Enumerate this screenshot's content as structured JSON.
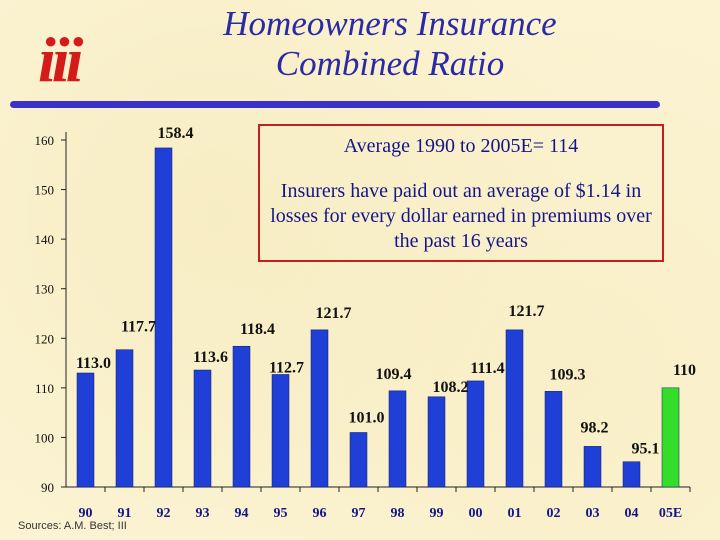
{
  "logo_text": "iii",
  "title_line1": "Homeowners Insurance",
  "title_line2": "Combined Ratio",
  "annotation": {
    "average": "Average 1990 to 2005E= 114",
    "description": "Insurers have paid out an average of $1.14 in losses for every dollar earned in premiums over the past 16 years"
  },
  "source": "Sources: A.M. Best; III",
  "colors": {
    "bar": "#1f3fd6",
    "bar_estimate": "#33dd2a",
    "title": "#2a2aa8",
    "logo": "#d51a1a",
    "box_border": "#c02020"
  },
  "chart_data": {
    "type": "bar",
    "categories": [
      "90",
      "91",
      "92",
      "93",
      "94",
      "95",
      "96",
      "97",
      "98",
      "99",
      "00",
      "01",
      "02",
      "03",
      "04",
      "05E"
    ],
    "values": [
      113.0,
      117.7,
      158.4,
      113.6,
      118.4,
      112.7,
      121.7,
      101.0,
      109.4,
      108.2,
      111.4,
      121.7,
      109.3,
      98.2,
      95.1,
      110
    ],
    "data_labels": [
      "113.0",
      "117.7",
      "158.4",
      "113.6",
      "118.4",
      "112.7",
      "121.7",
      "101.0",
      "109.4",
      "108.2",
      "111.4",
      "121.7",
      "109.3",
      "98.2",
      "95.1",
      "110"
    ],
    "estimate_index": 15,
    "ylim": [
      90,
      160
    ],
    "yticks": [
      90,
      100,
      110,
      120,
      130,
      140,
      150,
      160
    ],
    "title": "Homeowners Insurance Combined Ratio",
    "xlabel": "",
    "ylabel": "",
    "grid": false,
    "legend": "none"
  }
}
